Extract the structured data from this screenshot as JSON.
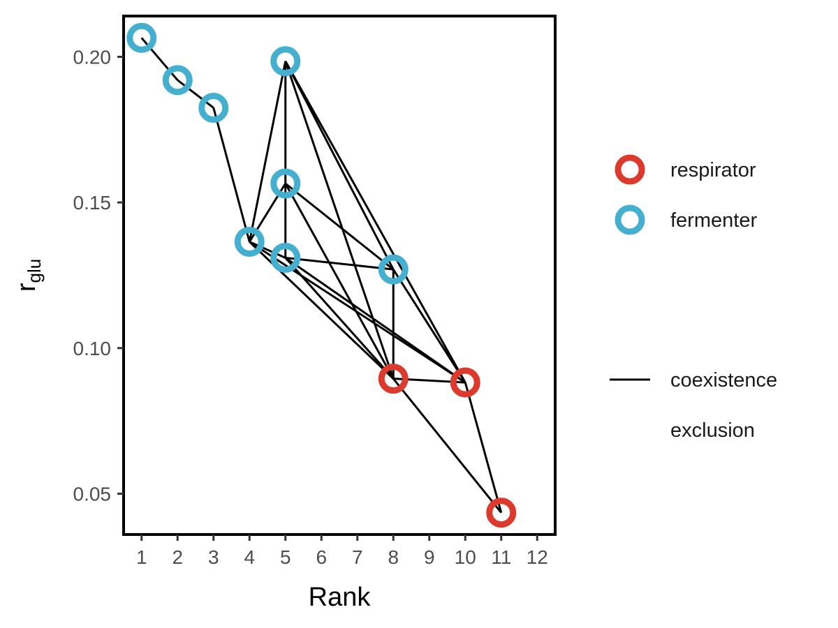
{
  "chart_data": {
    "type": "scatter",
    "title": "",
    "xlabel": "Rank",
    "ylabel": "r",
    "ylabel_subscript": "glu",
    "x_ticks": [
      "1",
      "2",
      "3",
      "4",
      "5",
      "6",
      "7",
      "8",
      "9",
      "10",
      "11",
      "12"
    ],
    "y_ticks": [
      "0.05",
      "0.10",
      "0.15",
      "0.20"
    ],
    "xlim": [
      0.5,
      12.5
    ],
    "ylim": [
      0.036,
      0.214
    ],
    "grid": false,
    "legend_position": "right",
    "series": [
      {
        "name": "respirator",
        "color": "#dc3a2d",
        "points": [
          {
            "id": "r1",
            "x": 8,
            "y": 0.0895
          },
          {
            "id": "r2",
            "x": 10,
            "y": 0.0882
          },
          {
            "id": "r3",
            "x": 11,
            "y": 0.0435
          }
        ]
      },
      {
        "name": "fermenter",
        "color": "#45afd0",
        "points": [
          {
            "id": "f1",
            "x": 1,
            "y": 0.2065
          },
          {
            "id": "f2",
            "x": 2,
            "y": 0.192
          },
          {
            "id": "f3",
            "x": 3,
            "y": 0.1825
          },
          {
            "id": "f4",
            "x": 4,
            "y": 0.1365
          },
          {
            "id": "f5",
            "x": 5,
            "y": 0.1985
          },
          {
            "id": "f6",
            "x": 5,
            "y": 0.1565
          },
          {
            "id": "f7",
            "x": 5,
            "y": 0.131
          },
          {
            "id": "f8",
            "x": 8,
            "y": 0.127
          }
        ]
      }
    ],
    "edges": [
      {
        "type": "coexistence",
        "from": "f1",
        "to": "f2"
      },
      {
        "type": "coexistence",
        "from": "f2",
        "to": "f3"
      },
      {
        "type": "coexistence",
        "from": "f3",
        "to": "f4"
      },
      {
        "type": "coexistence",
        "from": "f4",
        "to": "f5"
      },
      {
        "type": "coexistence",
        "from": "f4",
        "to": "f6"
      },
      {
        "type": "coexistence",
        "from": "f4",
        "to": "f7"
      },
      {
        "type": "coexistence",
        "from": "f5",
        "to": "f6"
      },
      {
        "type": "coexistence",
        "from": "f5",
        "to": "f8"
      },
      {
        "type": "coexistence",
        "from": "f5",
        "to": "r1"
      },
      {
        "type": "coexistence",
        "from": "f5",
        "to": "r2"
      },
      {
        "type": "coexistence",
        "from": "f6",
        "to": "f7"
      },
      {
        "type": "coexistence",
        "from": "f6",
        "to": "f8"
      },
      {
        "type": "coexistence",
        "from": "f6",
        "to": "r1"
      },
      {
        "type": "coexistence",
        "from": "f7",
        "to": "f8"
      },
      {
        "type": "coexistence",
        "from": "f7",
        "to": "r1"
      },
      {
        "type": "coexistence",
        "from": "f7",
        "to": "r2"
      },
      {
        "type": "coexistence",
        "from": "f4",
        "to": "r1"
      },
      {
        "type": "coexistence",
        "from": "f4",
        "to": "r2"
      },
      {
        "type": "coexistence",
        "from": "f8",
        "to": "r1"
      },
      {
        "type": "coexistence",
        "from": "f8",
        "to": "r2"
      },
      {
        "type": "coexistence",
        "from": "r1",
        "to": "r2"
      },
      {
        "type": "coexistence",
        "from": "r1",
        "to": "r3"
      },
      {
        "type": "coexistence",
        "from": "r2",
        "to": "r3"
      }
    ],
    "line_legend": [
      {
        "label": "coexistence",
        "color": "#000000"
      },
      {
        "label": "exclusion",
        "color": "#ffffff"
      }
    ]
  }
}
